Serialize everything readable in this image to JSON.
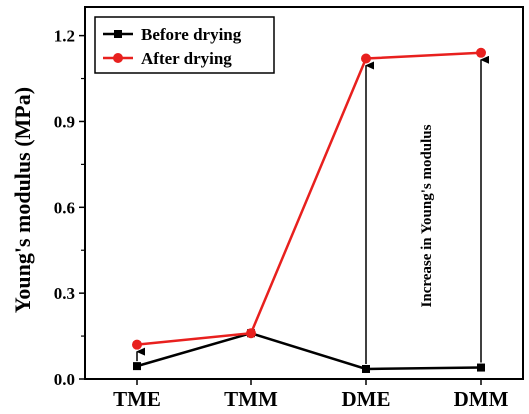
{
  "chart_data": {
    "type": "line",
    "title": "",
    "xlabel": "",
    "ylabel": "Young's modulus (MPa)",
    "categories": [
      "TME",
      "TMM",
      "DME",
      "DMM"
    ],
    "ylim": [
      0,
      1.3
    ],
    "yticks": [
      0.0,
      0.3,
      0.6,
      0.9,
      1.2
    ],
    "ytick_labels": [
      "0.0",
      "0.3",
      "0.6",
      "0.9",
      "1.2"
    ],
    "series": [
      {
        "name": "Before drying",
        "color": "#000000",
        "marker": "square",
        "values": [
          0.045,
          0.16,
          0.035,
          0.04
        ]
      },
      {
        "name": "After drying",
        "color": "#e8201e",
        "marker": "circle",
        "values": [
          0.12,
          0.16,
          1.12,
          1.14
        ]
      }
    ],
    "annotation": {
      "text": "Increase in Young's modulus"
    },
    "legend": {
      "position": "top-left"
    },
    "grid": false
  }
}
